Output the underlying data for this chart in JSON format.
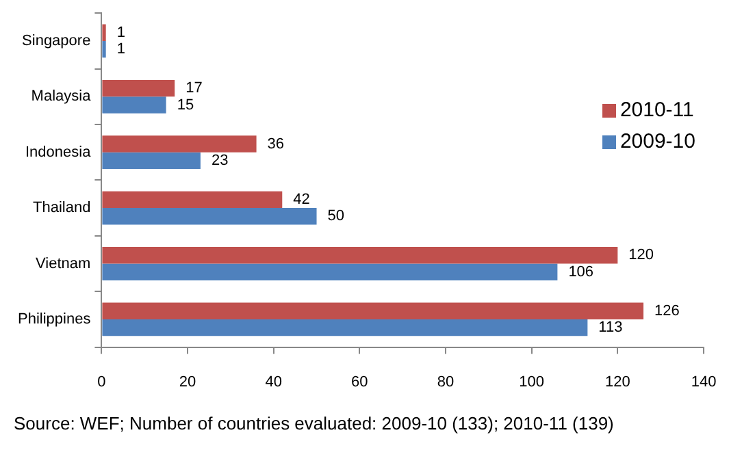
{
  "chart_data": {
    "type": "bar",
    "orientation": "horizontal",
    "categories": [
      "Singapore",
      "Malaysia",
      "Indonesia",
      "Thailand",
      "Vietnam",
      "Philippines"
    ],
    "series": [
      {
        "name": "2010-11",
        "color": "#c0504d",
        "values": [
          1,
          17,
          36,
          42,
          120,
          126
        ]
      },
      {
        "name": "2009-10",
        "color": "#4f81bd",
        "values": [
          1,
          15,
          23,
          50,
          106,
          113
        ]
      }
    ],
    "xlim": [
      0,
      140
    ],
    "xticks": [
      0,
      20,
      40,
      60,
      80,
      100,
      120,
      140
    ],
    "grid": false,
    "legend": "right",
    "data_labels": true,
    "annotations": [
      "Source: WEF; Number of countries evaluated: 2009-10 (133); 2010-11 (139)"
    ]
  }
}
